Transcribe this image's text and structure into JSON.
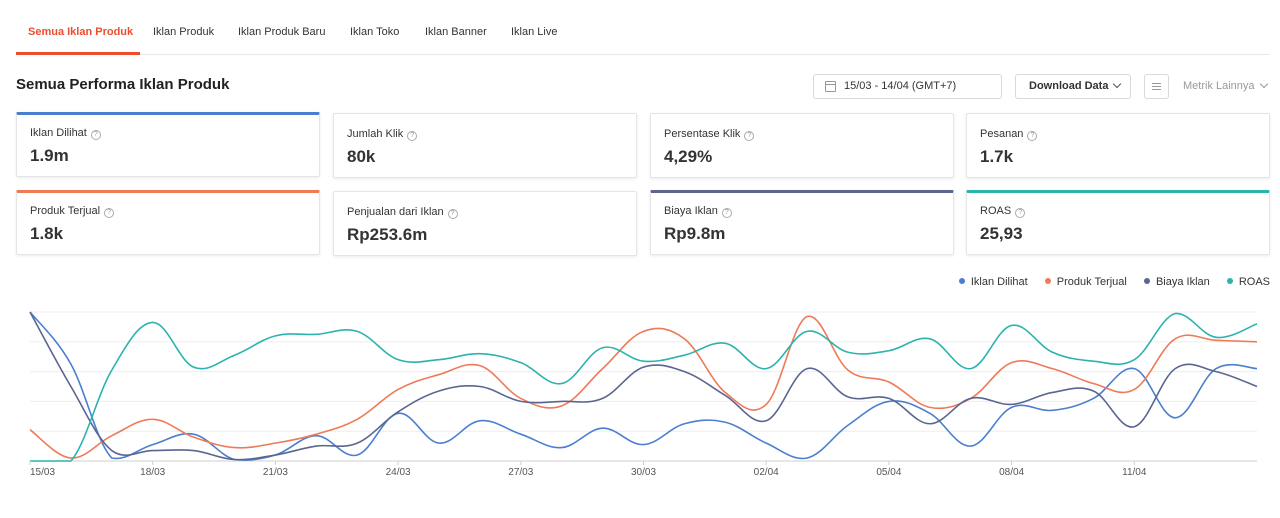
{
  "tabs": [
    {
      "label": "Semua Iklan Produk",
      "active": true
    },
    {
      "label": "Iklan Produk"
    },
    {
      "label": "Iklan Produk Baru"
    },
    {
      "label": "Iklan Toko"
    },
    {
      "label": "Iklan Banner"
    },
    {
      "label": "Iklan Live"
    }
  ],
  "header": {
    "title": "Semua Performa Iklan Produk",
    "date_range": "15/03 - 14/04 (GMT+7)",
    "download_label": "Download Data",
    "more_metrics_label": "Metrik Lainnya"
  },
  "metrics": [
    {
      "label": "Iklan Dilihat",
      "value": "1.9m",
      "selected": true,
      "color": "#4a7fd0"
    },
    {
      "label": "Jumlah Klik",
      "value": "80k",
      "selected": false
    },
    {
      "label": "Persentase Klik",
      "value": "4,29%",
      "selected": false
    },
    {
      "label": "Pesanan",
      "value": "1.7k",
      "selected": false
    },
    {
      "label": "Produk Terjual",
      "value": "1.8k",
      "selected": true,
      "color": "#ee7a58"
    },
    {
      "label": "Penjualan dari Iklan",
      "value": "Rp253.6m",
      "selected": false
    },
    {
      "label": "Biaya Iklan",
      "value": "Rp9.8m",
      "selected": true,
      "color": "#5a6691"
    },
    {
      "label": "ROAS",
      "value": "25,93",
      "selected": true,
      "color": "#2bb3ad"
    }
  ],
  "chart_data": {
    "type": "line",
    "x": [
      "15/03",
      "16/03",
      "17/03",
      "18/03",
      "19/03",
      "20/03",
      "21/03",
      "22/03",
      "23/03",
      "24/03",
      "25/03",
      "26/03",
      "27/03",
      "28/03",
      "29/03",
      "30/03",
      "31/03",
      "01/04",
      "02/04",
      "03/04",
      "04/04",
      "05/04",
      "06/04",
      "07/04",
      "08/04",
      "09/04",
      "10/04",
      "11/04",
      "12/04",
      "13/04",
      "14/04"
    ],
    "x_tick_labels": [
      "15/03",
      "18/03",
      "21/03",
      "24/03",
      "27/03",
      "30/03",
      "02/04",
      "05/04",
      "08/04",
      "11/04"
    ],
    "grid": true,
    "legend_position": "top-right",
    "series": [
      {
        "name": "Iklan Dilihat",
        "color": "#4a7fd0",
        "values": [
          1.0,
          0.65,
          0.02,
          0.11,
          0.18,
          0.01,
          0.04,
          0.17,
          0.04,
          0.32,
          0.12,
          0.27,
          0.18,
          0.09,
          0.22,
          0.11,
          0.25,
          0.26,
          0.12,
          0.02,
          0.24,
          0.4,
          0.32,
          0.1,
          0.36,
          0.34,
          0.42,
          0.62,
          0.29,
          0.62,
          0.62
        ]
      },
      {
        "name": "Produk Terjual",
        "color": "#ee7a58",
        "values": [
          0.21,
          0.02,
          0.17,
          0.28,
          0.16,
          0.09,
          0.12,
          0.18,
          0.28,
          0.48,
          0.58,
          0.64,
          0.42,
          0.37,
          0.62,
          0.87,
          0.82,
          0.46,
          0.38,
          0.97,
          0.61,
          0.53,
          0.36,
          0.42,
          0.66,
          0.62,
          0.52,
          0.48,
          0.82,
          0.81,
          0.8
        ]
      },
      {
        "name": "Biaya Iklan",
        "color": "#5a6691",
        "values": [
          1.0,
          0.5,
          0.07,
          0.07,
          0.07,
          0.01,
          0.04,
          0.1,
          0.12,
          0.33,
          0.47,
          0.5,
          0.4,
          0.4,
          0.42,
          0.63,
          0.6,
          0.44,
          0.27,
          0.62,
          0.43,
          0.42,
          0.25,
          0.42,
          0.38,
          0.46,
          0.47,
          0.23,
          0.62,
          0.6,
          0.5
        ]
      },
      {
        "name": "ROAS",
        "color": "#2bb3ad",
        "values": [
          0.0,
          0.0,
          0.61,
          0.93,
          0.63,
          0.71,
          0.84,
          0.85,
          0.87,
          0.68,
          0.68,
          0.72,
          0.66,
          0.52,
          0.76,
          0.67,
          0.71,
          0.79,
          0.62,
          0.87,
          0.73,
          0.74,
          0.82,
          0.62,
          0.91,
          0.73,
          0.67,
          0.68,
          0.99,
          0.83,
          0.92
        ]
      }
    ]
  }
}
